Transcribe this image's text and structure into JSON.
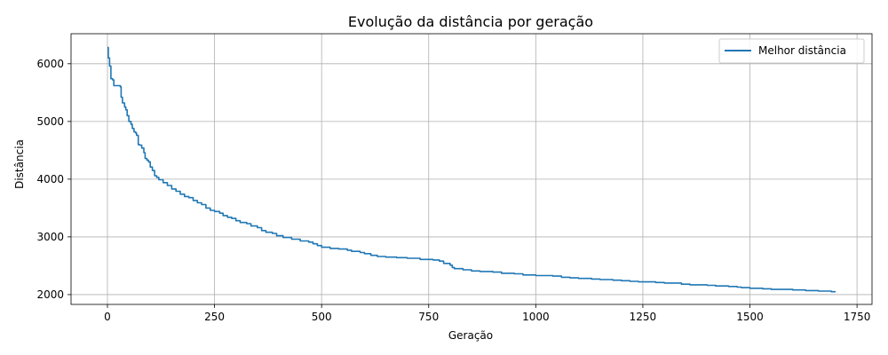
{
  "chart_data": {
    "type": "line",
    "title": "Evolução da distância por geração",
    "xlabel": "Geração",
    "ylabel": "Distância",
    "xlim": [
      -85,
      1785
    ],
    "ylim": [
      1830,
      6520
    ],
    "xticks": [
      0,
      250,
      500,
      750,
      1000,
      1250,
      1500,
      1750
    ],
    "yticks": [
      2000,
      3000,
      4000,
      5000,
      6000
    ],
    "grid": true,
    "legend_position": "top-right",
    "series": [
      {
        "name": "Melhor distância",
        "color": "#1f77b4",
        "step": true,
        "points": [
          [
            0,
            6280
          ],
          [
            2,
            6100
          ],
          [
            5,
            5960
          ],
          [
            8,
            5740
          ],
          [
            12,
            5720
          ],
          [
            15,
            5620
          ],
          [
            25,
            5620
          ],
          [
            30,
            5600
          ],
          [
            32,
            5420
          ],
          [
            35,
            5320
          ],
          [
            40,
            5250
          ],
          [
            43,
            5200
          ],
          [
            46,
            5100
          ],
          [
            50,
            5000
          ],
          [
            55,
            4950
          ],
          [
            58,
            4880
          ],
          [
            62,
            4820
          ],
          [
            66,
            4800
          ],
          [
            68,
            4760
          ],
          [
            72,
            4600
          ],
          [
            75,
            4590
          ],
          [
            80,
            4540
          ],
          [
            85,
            4460
          ],
          [
            88,
            4360
          ],
          [
            92,
            4330
          ],
          [
            96,
            4300
          ],
          [
            100,
            4210
          ],
          [
            105,
            4150
          ],
          [
            110,
            4060
          ],
          [
            115,
            4030
          ],
          [
            120,
            3990
          ],
          [
            130,
            3940
          ],
          [
            140,
            3890
          ],
          [
            150,
            3830
          ],
          [
            160,
            3790
          ],
          [
            170,
            3740
          ],
          [
            180,
            3700
          ],
          [
            190,
            3680
          ],
          [
            200,
            3630
          ],
          [
            210,
            3590
          ],
          [
            220,
            3560
          ],
          [
            230,
            3500
          ],
          [
            240,
            3460
          ],
          [
            250,
            3440
          ],
          [
            262,
            3410
          ],
          [
            270,
            3370
          ],
          [
            280,
            3340
          ],
          [
            290,
            3320
          ],
          [
            300,
            3280
          ],
          [
            310,
            3250
          ],
          [
            325,
            3230
          ],
          [
            335,
            3190
          ],
          [
            350,
            3160
          ],
          [
            360,
            3110
          ],
          [
            370,
            3080
          ],
          [
            385,
            3060
          ],
          [
            395,
            3020
          ],
          [
            410,
            2990
          ],
          [
            430,
            2960
          ],
          [
            450,
            2930
          ],
          [
            470,
            2910
          ],
          [
            480,
            2880
          ],
          [
            490,
            2850
          ],
          [
            500,
            2820
          ],
          [
            520,
            2800
          ],
          [
            540,
            2790
          ],
          [
            560,
            2770
          ],
          [
            570,
            2750
          ],
          [
            590,
            2730
          ],
          [
            600,
            2710
          ],
          [
            615,
            2680
          ],
          [
            630,
            2660
          ],
          [
            650,
            2650
          ],
          [
            675,
            2640
          ],
          [
            700,
            2630
          ],
          [
            730,
            2610
          ],
          [
            760,
            2600
          ],
          [
            775,
            2580
          ],
          [
            785,
            2540
          ],
          [
            800,
            2510
          ],
          [
            805,
            2470
          ],
          [
            810,
            2450
          ],
          [
            830,
            2430
          ],
          [
            850,
            2410
          ],
          [
            870,
            2400
          ],
          [
            900,
            2390
          ],
          [
            920,
            2370
          ],
          [
            950,
            2360
          ],
          [
            970,
            2340
          ],
          [
            1000,
            2330
          ],
          [
            1040,
            2320
          ],
          [
            1060,
            2300
          ],
          [
            1080,
            2290
          ],
          [
            1100,
            2280
          ],
          [
            1130,
            2270
          ],
          [
            1150,
            2260
          ],
          [
            1180,
            2250
          ],
          [
            1200,
            2240
          ],
          [
            1220,
            2230
          ],
          [
            1240,
            2220
          ],
          [
            1280,
            2210
          ],
          [
            1300,
            2200
          ],
          [
            1330,
            2200
          ],
          [
            1340,
            2180
          ],
          [
            1360,
            2170
          ],
          [
            1400,
            2160
          ],
          [
            1420,
            2150
          ],
          [
            1450,
            2140
          ],
          [
            1470,
            2130
          ],
          [
            1480,
            2120
          ],
          [
            1500,
            2110
          ],
          [
            1530,
            2100
          ],
          [
            1550,
            2090
          ],
          [
            1600,
            2080
          ],
          [
            1630,
            2070
          ],
          [
            1660,
            2060
          ],
          [
            1690,
            2050
          ],
          [
            1700,
            2050
          ]
        ]
      }
    ]
  }
}
